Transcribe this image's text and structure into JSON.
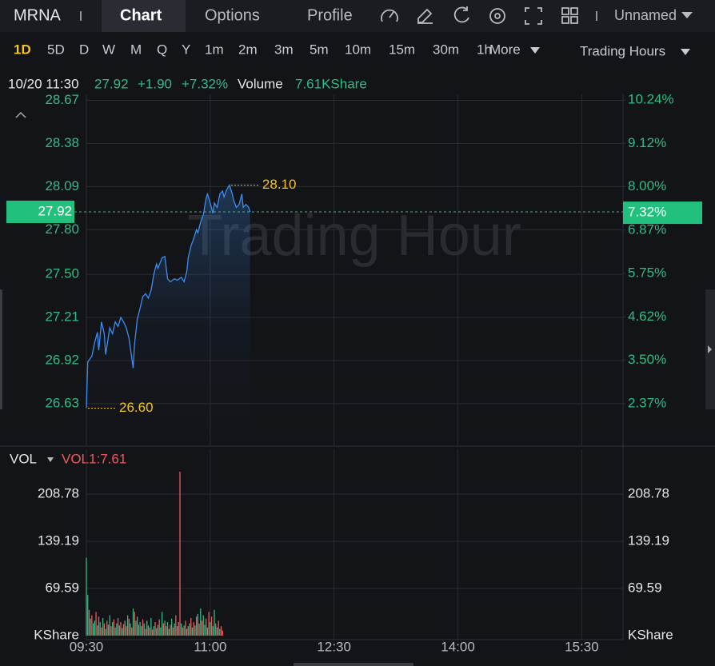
{
  "toolbar": {
    "symbol": "MRNA",
    "tabs": [
      "Chart",
      "Options",
      "Profile"
    ],
    "layout": "Unnamed"
  },
  "timeframes": [
    "1D",
    "5D",
    "D",
    "W",
    "M",
    "Q",
    "Y",
    "1m",
    "2m",
    "3m",
    "5m",
    "10m",
    "15m",
    "30m",
    "1h"
  ],
  "more": "More",
  "session": "Trading Hours",
  "quote": {
    "datetime": "10/20 11:30",
    "price": "27.92",
    "change": "+1.90",
    "change_pct": "+7.32%",
    "volume_label": "Volume",
    "volume": "7.61KShare"
  },
  "chart_data": [
    {
      "type": "line",
      "watermark": "Trading Hour",
      "color": "#3d8df0",
      "grid": true,
      "xlim": [
        570,
        960
      ],
      "x": [
        570,
        571,
        574,
        576,
        578,
        579,
        581,
        583,
        584,
        587,
        589,
        591,
        593,
        595,
        597,
        599,
        601,
        604,
        605,
        607,
        609,
        611,
        613,
        615,
        617,
        619,
        621,
        622,
        625,
        627,
        629,
        631,
        634,
        636,
        639,
        641,
        643,
        644,
        646,
        648,
        650,
        651,
        653,
        655,
        657,
        658,
        660,
        662,
        663,
        665,
        667,
        669,
        670,
        672,
        674,
        676,
        677,
        679,
        681,
        683,
        684,
        686,
        688,
        689
      ],
      "values": [
        26.6,
        26.91,
        26.95,
        27.04,
        27.11,
        26.99,
        27.18,
        27.1,
        26.96,
        27.14,
        27.1,
        27.18,
        27.15,
        27.21,
        27.18,
        27.14,
        27.07,
        26.87,
        27.03,
        27.2,
        27.27,
        27.35,
        27.37,
        27.34,
        27.39,
        27.5,
        27.57,
        27.54,
        27.61,
        27.62,
        27.47,
        27.45,
        27.47,
        27.46,
        27.48,
        27.45,
        27.52,
        27.61,
        27.69,
        27.74,
        27.8,
        27.78,
        27.85,
        27.9,
        28.01,
        28.04,
        27.98,
        27.91,
        27.98,
        27.95,
        28.04,
        28.06,
        28.02,
        28.07,
        28.1,
        28.04,
        28.0,
        27.95,
        27.97,
        28.04,
        27.95,
        27.97,
        27.95,
        27.92
      ],
      "ylim": [
        26.35,
        28.71
      ],
      "yticks": [
        28.67,
        28.38,
        28.09,
        {
          "value": 27.8,
          "label": "27.80"
        },
        {
          "value": 27.5,
          "label": "27.50"
        },
        27.21,
        26.92,
        26.63
      ],
      "y2lim": [
        1.29,
        10.39
      ],
      "y2ticks": [
        {
          "value": 10.24,
          "label": "10.24%"
        },
        {
          "value": 9.12,
          "label": "9.12%"
        },
        {
          "value": 8.0,
          "label": "8.00%"
        },
        {
          "value": 6.87,
          "label": "6.87%"
        },
        {
          "value": 5.75,
          "label": "5.75%"
        },
        {
          "value": 4.62,
          "label": "4.62%"
        },
        {
          "value": 3.5,
          "label": "3.50%"
        },
        {
          "value": 2.37,
          "label": "2.37%"
        }
      ],
      "last": {
        "value": 27.92,
        "label": "27.92",
        "y2_value": 7.32,
        "y2_label": "7.32%"
      },
      "annotations": [
        {
          "text": "28.10",
          "x": 674,
          "y": 28.1
        },
        {
          "text": "26.60",
          "x": 570,
          "y": 26.6
        }
      ]
    },
    {
      "type": "bar",
      "title": "VOL",
      "indicator": "VOL1:7.61",
      "xlim": [
        570,
        960
      ],
      "xticks": [
        {
          "value": 570,
          "label": "09:30"
        },
        {
          "value": 660,
          "label": "11:00"
        },
        {
          "value": 750,
          "label": "12:30"
        },
        {
          "value": 840,
          "label": "14:00"
        },
        {
          "value": 930,
          "label": "15:30"
        }
      ],
      "ylim": [
        0,
        275
      ],
      "yticks": [
        {
          "value": 0,
          "label": "KShare"
        },
        69.59,
        139.19,
        208.78
      ],
      "x": [
        570,
        571,
        572,
        573,
        574,
        575,
        576,
        577,
        578,
        579,
        580,
        581,
        582,
        583,
        584,
        585,
        586,
        587,
        588,
        589,
        590,
        591,
        592,
        593,
        594,
        595,
        596,
        597,
        598,
        599,
        600,
        601,
        602,
        603,
        604,
        605,
        606,
        607,
        608,
        609,
        610,
        611,
        612,
        613,
        614,
        615,
        616,
        617,
        618,
        619,
        620,
        621,
        622,
        623,
        624,
        625,
        626,
        627,
        628,
        629,
        630,
        631,
        632,
        633,
        634,
        635,
        636,
        637,
        638,
        639,
        640,
        641,
        642,
        643,
        644,
        645,
        646,
        647,
        648,
        649,
        650,
        651,
        652,
        653,
        654,
        655,
        656,
        657,
        658,
        659,
        660,
        661,
        662,
        663,
        664,
        665,
        666,
        667,
        668,
        669
      ],
      "values": [
        115,
        60,
        38,
        25,
        30,
        18,
        22,
        35,
        15,
        28,
        20,
        12,
        26,
        18,
        10,
        22,
        16,
        30,
        14,
        20,
        24,
        12,
        18,
        26,
        15,
        20,
        11,
        17,
        22,
        14,
        30,
        25,
        18,
        12,
        40,
        35,
        22,
        28,
        16,
        20,
        14,
        24,
        18,
        10,
        22,
        15,
        12,
        26,
        9,
        14,
        20,
        11,
        16,
        24,
        12,
        35,
        18,
        22,
        14,
        20,
        10,
        16,
        25,
        12,
        18,
        30,
        14,
        20,
        242,
        18,
        12,
        15,
        22,
        10,
        14,
        18,
        26,
        12,
        20,
        15,
        28,
        32,
        18,
        40,
        22,
        30,
        16,
        25,
        12,
        35,
        20,
        28,
        14,
        38,
        18,
        12,
        22,
        10,
        14,
        7.61
      ],
      "colors": [
        "#2ebd85",
        "#2ebd85",
        "#f0595b",
        "#2ebd85",
        "#f0595b",
        "#2ebd85",
        "#2ebd85",
        "#f0595b",
        "#2ebd85",
        "#f0595b",
        "#2ebd85",
        "#f0595b",
        "#2ebd85",
        "#f0595b",
        "#2ebd85",
        "#f0595b",
        "#2ebd85",
        "#2ebd85",
        "#f0595b",
        "#2ebd85",
        "#f0595b",
        "#2ebd85",
        "#2ebd85",
        "#f0595b",
        "#2ebd85",
        "#f0595b",
        "#2ebd85",
        "#f0595b",
        "#2ebd85",
        "#f0595b",
        "#2ebd85",
        "#f0595b",
        "#2ebd85",
        "#f0595b",
        "#2ebd85",
        "#f0595b",
        "#2ebd85",
        "#2ebd85",
        "#f0595b",
        "#2ebd85",
        "#2ebd85",
        "#f0595b",
        "#2ebd85",
        "#f0595b",
        "#2ebd85",
        "#2ebd85",
        "#f0595b",
        "#2ebd85",
        "#f0595b",
        "#2ebd85",
        "#f0595b",
        "#2ebd85",
        "#2ebd85",
        "#f0595b",
        "#2ebd85",
        "#2ebd85",
        "#f0595b",
        "#2ebd85",
        "#f0595b",
        "#2ebd85",
        "#2ebd85",
        "#f0595b",
        "#2ebd85",
        "#f0595b",
        "#2ebd85",
        "#f0595b",
        "#2ebd85",
        "#f0595b",
        "#f0595b",
        "#2ebd85",
        "#f0595b",
        "#2ebd85",
        "#f0595b",
        "#2ebd85",
        "#f0595b",
        "#2ebd85",
        "#f0595b",
        "#2ebd85",
        "#f0595b",
        "#2ebd85",
        "#f0595b",
        "#2ebd85",
        "#f0595b",
        "#2ebd85",
        "#f0595b",
        "#2ebd85",
        "#2ebd85",
        "#f0595b",
        "#2ebd85",
        "#f0595b",
        "#2ebd85",
        "#f0595b",
        "#2ebd85",
        "#2ebd85",
        "#f0595b",
        "#2ebd85",
        "#f0595b",
        "#2ebd85",
        "#f0595b",
        "#f0595b"
      ]
    }
  ]
}
